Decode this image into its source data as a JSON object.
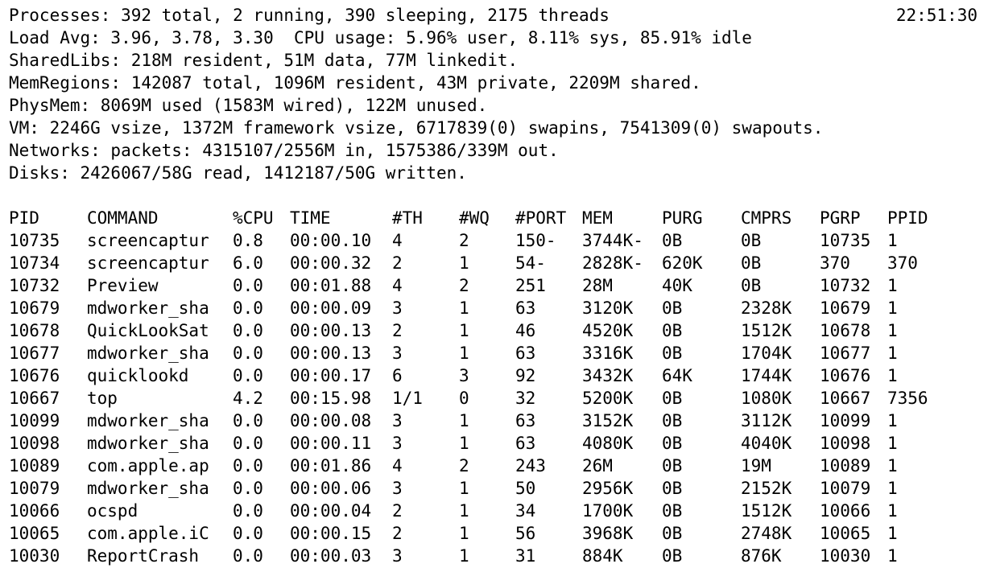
{
  "summary": {
    "processes": "Processes: 392 total, 2 running, 390 sleeping, 2175 threads",
    "clock": "22:51:30",
    "load": "Load Avg: 3.96, 3.78, 3.30  CPU usage: 5.96% user, 8.11% sys, 85.91% idle",
    "sharedlibs": "SharedLibs: 218M resident, 51M data, 77M linkedit.",
    "memregions": "MemRegions: 142087 total, 1096M resident, 43M private, 2209M shared.",
    "physmem": "PhysMem: 8069M used (1583M wired), 122M unused.",
    "vm": "VM: 2246G vsize, 1372M framework vsize, 6717839(0) swapins, 7541309(0) swapouts.",
    "networks": "Networks: packets: 4315107/2556M in, 1575386/339M out.",
    "disks": "Disks: 2426067/58G read, 1412187/50G written."
  },
  "table": {
    "columns": [
      "PID",
      "COMMAND",
      "%CPU",
      "TIME",
      "#TH",
      "#WQ",
      "#PORT",
      "MEM",
      "PURG",
      "CMPRS",
      "PGRP",
      "PPID"
    ],
    "rows": [
      [
        "10735",
        "screencaptur",
        "0.8",
        "00:00.10",
        "4",
        "2",
        "150-",
        "3744K-",
        "0B",
        "0B",
        "10735",
        "1"
      ],
      [
        "10734",
        "screencaptur",
        "6.0",
        "00:00.32",
        "2",
        "1",
        "54-",
        "2828K-",
        "620K",
        "0B",
        "370",
        "370"
      ],
      [
        "10732",
        "Preview",
        "0.0",
        "00:01.88",
        "4",
        "2",
        "251",
        "28M",
        "40K",
        "0B",
        "10732",
        "1"
      ],
      [
        "10679",
        "mdworker_sha",
        "0.0",
        "00:00.09",
        "3",
        "1",
        "63",
        "3120K",
        "0B",
        "2328K",
        "10679",
        "1"
      ],
      [
        "10678",
        "QuickLookSat",
        "0.0",
        "00:00.13",
        "2",
        "1",
        "46",
        "4520K",
        "0B",
        "1512K",
        "10678",
        "1"
      ],
      [
        "10677",
        "mdworker_sha",
        "0.0",
        "00:00.13",
        "3",
        "1",
        "63",
        "3316K",
        "0B",
        "1704K",
        "10677",
        "1"
      ],
      [
        "10676",
        "quicklookd",
        "0.0",
        "00:00.17",
        "6",
        "3",
        "92",
        "3432K",
        "64K",
        "1744K",
        "10676",
        "1"
      ],
      [
        "10667",
        "top",
        "4.2",
        "00:15.98",
        "1/1",
        "0",
        "32",
        "5200K",
        "0B",
        "1080K",
        "10667",
        "7356"
      ],
      [
        "10099",
        "mdworker_sha",
        "0.0",
        "00:00.08",
        "3",
        "1",
        "63",
        "3152K",
        "0B",
        "3112K",
        "10099",
        "1"
      ],
      [
        "10098",
        "mdworker_sha",
        "0.0",
        "00:00.11",
        "3",
        "1",
        "63",
        "4080K",
        "0B",
        "4040K",
        "10098",
        "1"
      ],
      [
        "10089",
        "com.apple.ap",
        "0.0",
        "00:01.86",
        "4",
        "2",
        "243",
        "26M",
        "0B",
        "19M",
        "10089",
        "1"
      ],
      [
        "10079",
        "mdworker_sha",
        "0.0",
        "00:00.06",
        "3",
        "1",
        "50",
        "2956K",
        "0B",
        "2152K",
        "10079",
        "1"
      ],
      [
        "10066",
        "ocspd",
        "0.0",
        "00:00.04",
        "2",
        "1",
        "34",
        "1700K",
        "0B",
        "1512K",
        "10066",
        "1"
      ],
      [
        "10065",
        "com.apple.iC",
        "0.0",
        "00:00.15",
        "2",
        "1",
        "56",
        "3968K",
        "0B",
        "2748K",
        "10065",
        "1"
      ],
      [
        "10030",
        "ReportCrash",
        "0.0",
        "00:00.03",
        "3",
        "1",
        "31",
        "884K",
        "0B",
        "876K",
        "10030",
        "1"
      ]
    ]
  }
}
